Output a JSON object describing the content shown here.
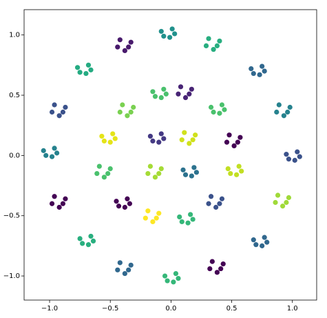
{
  "chart_data": {
    "type": "scatter",
    "xlim": [
      -1.21,
      1.2
    ],
    "ylim": [
      -1.2,
      1.21
    ],
    "xticks": [
      {
        "value": -1.0,
        "label": "−1.0"
      },
      {
        "value": -0.5,
        "label": "−0.5"
      },
      {
        "value": 0.0,
        "label": "0.0"
      },
      {
        "value": 0.5,
        "label": "0.5"
      },
      {
        "value": 1.0,
        "label": "1.0"
      }
    ],
    "yticks": [
      {
        "value": -1.0,
        "label": "−1.0"
      },
      {
        "value": -0.5,
        "label": "−0.5"
      },
      {
        "value": 0.0,
        "label": "0.0"
      },
      {
        "value": 0.5,
        "label": "0.5"
      },
      {
        "value": 1.0,
        "label": "1.0"
      }
    ],
    "grid": false,
    "series": [
      {
        "color": "#21918c",
        "x": [
          0.01,
          -0.08,
          -0.01,
          -0.06,
          0.03
        ],
        "values": [
          1.05,
          1.03,
          0.98,
          0.99,
          1.01
        ]
      },
      {
        "color": "#28ae80",
        "x": [
          0.31,
          0.4,
          0.35,
          0.29,
          0.38
        ],
        "values": [
          0.97,
          0.95,
          0.88,
          0.91,
          0.91
        ]
      },
      {
        "color": "#31688e",
        "x": [
          0.75,
          0.66,
          0.73,
          0.68,
          0.77
        ],
        "values": [
          0.74,
          0.72,
          0.67,
          0.68,
          0.7
        ]
      },
      {
        "color": "#26828e",
        "x": [
          0.89,
          0.98,
          0.93,
          0.87,
          0.96
        ],
        "values": [
          0.42,
          0.4,
          0.33,
          0.36,
          0.36
        ]
      },
      {
        "color": "#3b528b",
        "x": [
          1.04,
          0.95,
          1.02,
          0.97,
          1.06
        ],
        "values": [
          0.03,
          0.01,
          -0.04,
          -0.03,
          -0.01
        ]
      },
      {
        "color": "#a0da39",
        "x": [
          0.88,
          0.97,
          0.92,
          0.86,
          0.95
        ],
        "values": [
          -0.33,
          -0.35,
          -0.42,
          -0.39,
          -0.39
        ]
      },
      {
        "color": "#31688e",
        "x": [
          0.77,
          0.68,
          0.75,
          0.7,
          0.79
        ],
        "values": [
          -0.68,
          -0.7,
          -0.75,
          -0.74,
          -0.72
        ]
      },
      {
        "color": "#440154",
        "x": [
          0.34,
          0.43,
          0.38,
          0.32,
          0.41
        ],
        "values": [
          -0.88,
          -0.9,
          -0.97,
          -0.94,
          -0.94
        ]
      },
      {
        "color": "#35b779",
        "x": [
          0.04,
          -0.05,
          0.02,
          -0.03,
          0.06
        ],
        "values": [
          -0.98,
          -1.0,
          -1.05,
          -1.04,
          -1.02
        ]
      },
      {
        "color": "#31688e",
        "x": [
          -0.42,
          -0.33,
          -0.38,
          -0.44,
          -0.35
        ],
        "values": [
          -0.89,
          -0.91,
          -0.98,
          -0.95,
          -0.95
        ]
      },
      {
        "color": "#29af7f",
        "x": [
          -0.66,
          -0.75,
          -0.68,
          -0.73,
          -0.64
        ],
        "values": [
          -0.67,
          -0.69,
          -0.74,
          -0.73,
          -0.71
        ]
      },
      {
        "color": "#440154",
        "x": [
          -0.96,
          -0.87,
          -0.92,
          -0.98,
          -0.89
        ],
        "values": [
          -0.34,
          -0.36,
          -0.43,
          -0.4,
          -0.4
        ]
      },
      {
        "color": "#26828e",
        "x": [
          -0.96,
          -1.05,
          -0.98,
          -1.03,
          -0.94
        ],
        "values": [
          0.06,
          0.04,
          -0.01,
          0.0,
          0.02
        ]
      },
      {
        "color": "#3b528b",
        "x": [
          -0.96,
          -0.87,
          -0.92,
          -0.98,
          -0.89
        ],
        "values": [
          0.42,
          0.4,
          0.33,
          0.36,
          0.36
        ]
      },
      {
        "color": "#25ab82",
        "x": [
          -0.68,
          -0.77,
          -0.7,
          -0.75,
          -0.66
        ],
        "values": [
          0.75,
          0.73,
          0.68,
          0.69,
          0.71
        ]
      },
      {
        "color": "#481a6c",
        "x": [
          -0.42,
          -0.33,
          -0.38,
          -0.44,
          -0.35
        ],
        "values": [
          0.96,
          0.94,
          0.87,
          0.9,
          0.9
        ]
      },
      {
        "color": "#4ac16d",
        "x": [
          -0.06,
          -0.15,
          -0.08,
          -0.13,
          -0.04
        ],
        "values": [
          0.55,
          0.53,
          0.48,
          0.49,
          0.51
        ]
      },
      {
        "color": "#482475",
        "x": [
          0.08,
          0.17,
          0.12,
          0.06,
          0.15
        ],
        "values": [
          0.57,
          0.55,
          0.48,
          0.51,
          0.51
        ]
      },
      {
        "color": "#4ac16d",
        "x": [
          0.42,
          0.33,
          0.4,
          0.35,
          0.44
        ],
        "values": [
          0.42,
          0.4,
          0.35,
          0.36,
          0.38
        ]
      },
      {
        "color": "#440154",
        "x": [
          0.48,
          0.57,
          0.52,
          0.46,
          0.55
        ],
        "values": [
          0.17,
          0.15,
          0.08,
          0.11,
          0.11
        ]
      },
      {
        "color": "#c2df23",
        "x": [
          0.56,
          0.47,
          0.54,
          0.49,
          0.58
        ],
        "values": [
          -0.09,
          -0.11,
          -0.16,
          -0.15,
          -0.13
        ]
      },
      {
        "color": "#3b528b",
        "x": [
          0.33,
          0.42,
          0.37,
          0.31,
          0.4
        ],
        "values": [
          -0.34,
          -0.36,
          -0.43,
          -0.4,
          -0.4
        ]
      },
      {
        "color": "#35b779",
        "x": [
          0.16,
          0.07,
          0.14,
          0.09,
          0.18
        ],
        "values": [
          -0.49,
          -0.51,
          -0.56,
          -0.55,
          -0.53
        ]
      },
      {
        "color": "#fde725",
        "x": [
          -0.19,
          -0.1,
          -0.15,
          -0.21,
          -0.12
        ],
        "values": [
          -0.46,
          -0.48,
          -0.55,
          -0.52,
          -0.52
        ]
      },
      {
        "color": "#440154",
        "x": [
          -0.36,
          -0.45,
          -0.38,
          -0.43,
          -0.34
        ],
        "values": [
          -0.36,
          -0.38,
          -0.43,
          -0.42,
          -0.4
        ]
      },
      {
        "color": "#4ac16d",
        "x": [
          -0.59,
          -0.5,
          -0.55,
          -0.61,
          -0.52
        ],
        "values": [
          -0.09,
          -0.11,
          -0.18,
          -0.15,
          -0.15
        ]
      },
      {
        "color": "#e5e419",
        "x": [
          -0.48,
          -0.57,
          -0.5,
          -0.55,
          -0.46
        ],
        "values": [
          0.18,
          0.16,
          0.11,
          0.12,
          0.14
        ]
      },
      {
        "color": "#7ad151",
        "x": [
          -0.4,
          -0.31,
          -0.36,
          -0.42,
          -0.33
        ],
        "values": [
          0.42,
          0.4,
          0.33,
          0.36,
          0.36
        ]
      },
      {
        "color": "#443983",
        "x": [
          -0.08,
          -0.17,
          -0.1,
          -0.15,
          -0.06
        ],
        "values": [
          0.18,
          0.16,
          0.11,
          0.12,
          0.14
        ]
      },
      {
        "color": "#d0e11c",
        "x": [
          0.11,
          0.2,
          0.15,
          0.09,
          0.18
        ],
        "values": [
          0.19,
          0.17,
          0.1,
          0.13,
          0.13
        ]
      },
      {
        "color": "#2c728e",
        "x": [
          0.19,
          0.1,
          0.17,
          0.12,
          0.21
        ],
        "values": [
          -0.1,
          -0.12,
          -0.17,
          -0.16,
          -0.14
        ]
      },
      {
        "color": "#a5db36",
        "x": [
          -0.17,
          -0.08,
          -0.13,
          -0.19,
          -0.1
        ],
        "values": [
          -0.09,
          -0.11,
          -0.18,
          -0.15,
          -0.15
        ]
      }
    ]
  }
}
